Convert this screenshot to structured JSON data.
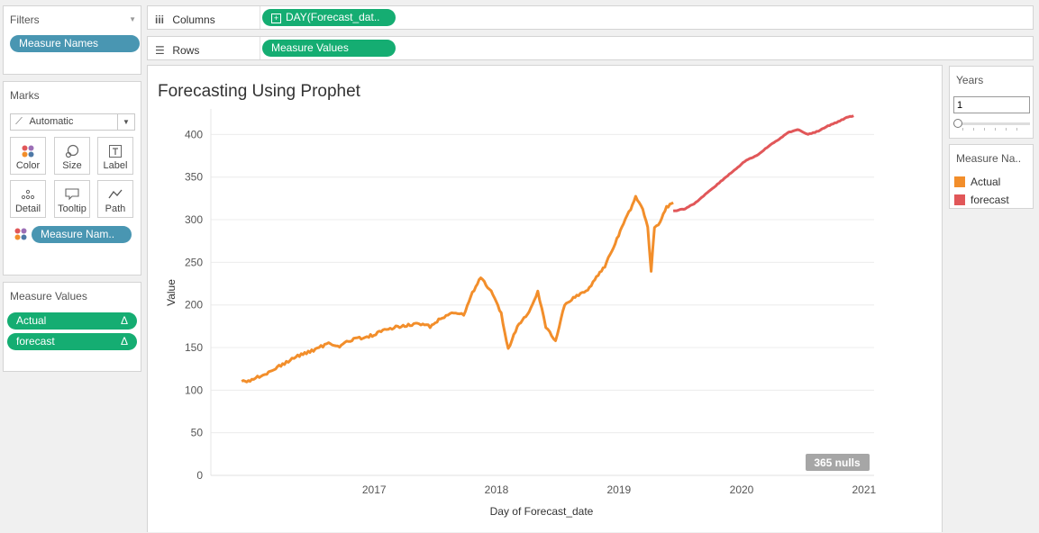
{
  "filters": {
    "title": "Filters",
    "pills": [
      "Measure Names"
    ]
  },
  "marks": {
    "title": "Marks",
    "type_label": "Automatic",
    "buttons": [
      {
        "name": "color",
        "label": "Color",
        "icon": "color-dots-icon"
      },
      {
        "name": "size",
        "label": "Size",
        "icon": "size-icon"
      },
      {
        "name": "label",
        "label": "Label",
        "icon": "label-T-icon"
      },
      {
        "name": "detail",
        "label": "Detail",
        "icon": "detail-dots-icon"
      },
      {
        "name": "tooltip",
        "label": "Tooltip",
        "icon": "tooltip-icon"
      },
      {
        "name": "path",
        "label": "Path",
        "icon": "path-icon"
      }
    ],
    "color_pill": "Measure Nam.."
  },
  "measure_values": {
    "title": "Measure Values",
    "pills": [
      "Actual",
      "forecast"
    ],
    "delta_symbol": "Δ"
  },
  "columns": {
    "label": "Columns",
    "pill": "DAY(Forecast_dat.."
  },
  "rows": {
    "label": "Rows",
    "pill": "Measure Values"
  },
  "years_filter": {
    "title": "Years",
    "value": "1"
  },
  "legend": {
    "title": "Measure Na..",
    "items": [
      {
        "label": "Actual",
        "color": "#f28e2b"
      },
      {
        "label": "forecast",
        "color": "#e15759"
      }
    ]
  },
  "chart": {
    "title": "Forecasting Using Prophet",
    "xlabel": "Day of Forecast_date",
    "ylabel": "Value",
    "nulls_badge": "365 nulls"
  },
  "chart_data": {
    "type": "line",
    "title": "Forecasting Using Prophet",
    "xlabel": "Day of Forecast_date",
    "ylabel": "Value",
    "x_ticks": [
      "2017",
      "2018",
      "2019",
      "2020",
      "2021"
    ],
    "y_ticks": [
      0,
      50,
      100,
      150,
      200,
      250,
      300,
      350,
      400
    ],
    "ylim": [
      0,
      430
    ],
    "xlim": [
      "2016-03-01",
      "2021-07-31"
    ],
    "grid": true,
    "legend_position": "right",
    "series": [
      {
        "name": "Actual",
        "color": "#f28e2b",
        "x": [
          "2016-06-01",
          "2016-07-01",
          "2016-08-15",
          "2016-10-01",
          "2016-11-15",
          "2017-01-01",
          "2017-02-15",
          "2017-03-20",
          "2017-05-01",
          "2017-06-15",
          "2017-08-01",
          "2017-09-15",
          "2017-11-01",
          "2017-12-15",
          "2018-01-20",
          "2018-03-01",
          "2018-03-25",
          "2018-04-15",
          "2018-05-15",
          "2018-06-15",
          "2018-07-15",
          "2018-08-05",
          "2018-09-01",
          "2018-10-01",
          "2018-11-01",
          "2018-11-25",
          "2018-12-24",
          "2019-01-20",
          "2019-02-20",
          "2019-03-25",
          "2019-04-25",
          "2019-05-20",
          "2019-06-15",
          "2019-07-15",
          "2019-08-05",
          "2019-08-20",
          "2019-09-05",
          "2019-09-25",
          "2019-10-05",
          "2019-10-15",
          "2019-11-01",
          "2019-11-20",
          "2019-12-10"
        ],
        "y": [
          110,
          112,
          120,
          130,
          140,
          147,
          155,
          152,
          160,
          163,
          170,
          175,
          178,
          175,
          185,
          192,
          188,
          210,
          232,
          215,
          190,
          148,
          175,
          188,
          216,
          175,
          158,
          200,
          210,
          215,
          233,
          245,
          268,
          295,
          313,
          326,
          318,
          290,
          240,
          290,
          297,
          315,
          320
        ]
      },
      {
        "name": "forecast",
        "color": "#e15759",
        "x": [
          "2019-12-10",
          "2020-01-15",
          "2020-02-15",
          "2020-03-15",
          "2020-04-15",
          "2020-05-15",
          "2020-06-15",
          "2020-07-15",
          "2020-08-15",
          "2020-09-15",
          "2020-10-15",
          "2020-11-15",
          "2020-12-15",
          "2021-01-15",
          "2021-02-15",
          "2021-03-15",
          "2021-04-15",
          "2021-05-10",
          "2021-05-31"
        ],
        "y": [
          310,
          313,
          320,
          330,
          340,
          350,
          360,
          370,
          375,
          385,
          393,
          402,
          406,
          400,
          404,
          410,
          415,
          420,
          422
        ]
      }
    ],
    "annotations": [
      "365 nulls"
    ]
  }
}
